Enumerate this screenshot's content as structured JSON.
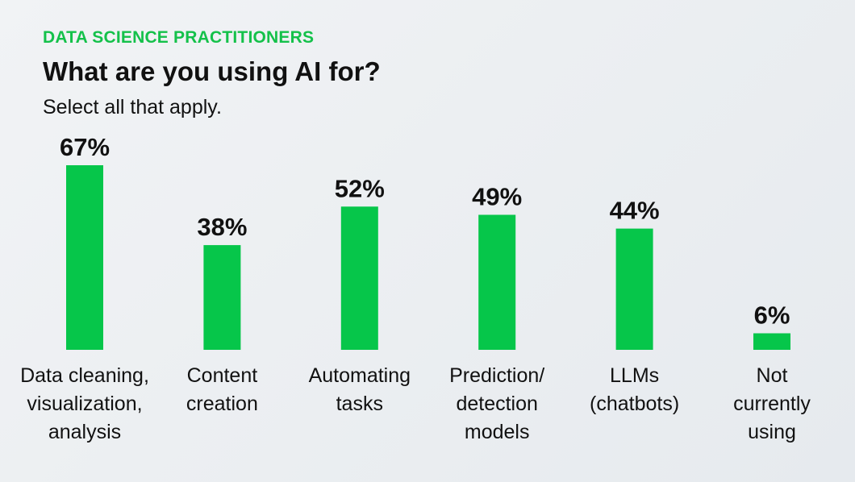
{
  "header": {
    "kicker": "DATA SCIENCE PRACTITIONERS",
    "title": "What are you using AI for?",
    "subtitle": "Select all that apply."
  },
  "colors": {
    "accent": "#14c14a",
    "bar": "#06c64a",
    "text": "#111111"
  },
  "chart_data": {
    "type": "bar",
    "categories": [
      [
        "Data cleaning,",
        "visualization,",
        "analysis"
      ],
      [
        "Content",
        "creation"
      ],
      [
        "Automating",
        "tasks"
      ],
      [
        "Prediction/",
        "detection",
        "models"
      ],
      [
        "LLMs",
        "(chatbots)"
      ],
      [
        "Not",
        "currently",
        "using"
      ]
    ],
    "values": [
      67,
      38,
      52,
      49,
      44,
      6
    ],
    "value_labels": [
      "67%",
      "38%",
      "52%",
      "49%",
      "44%",
      "6%"
    ],
    "unit": "%",
    "ylim": [
      0,
      67
    ],
    "grid": false,
    "legend": "none"
  }
}
